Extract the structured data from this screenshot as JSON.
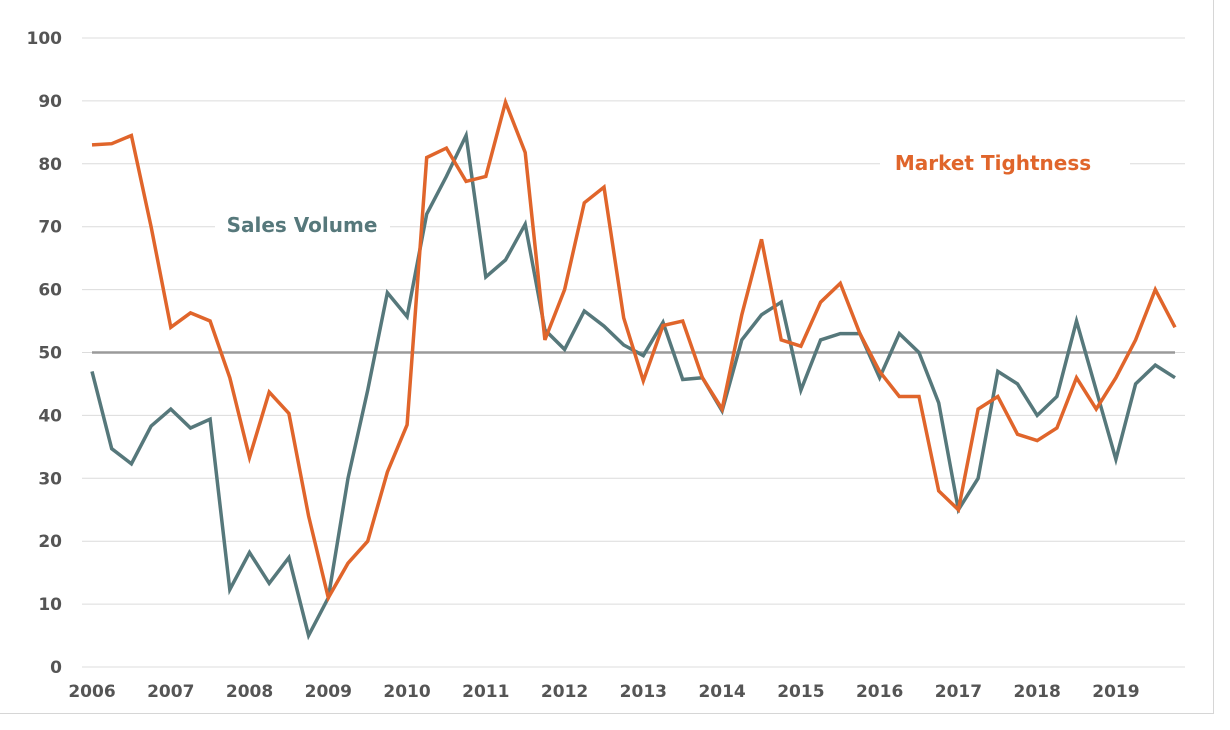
{
  "chart_data": {
    "type": "line",
    "title": "",
    "xlabel": "",
    "ylabel": "",
    "ylim": [
      0,
      100
    ],
    "yticks": [
      "0",
      "10",
      "20",
      "30",
      "40",
      "50",
      "60",
      "70",
      "80",
      "90",
      "100"
    ],
    "xticks": [
      "2006",
      "2007",
      "2008",
      "2009",
      "2010",
      "2011",
      "2012",
      "2013",
      "2014",
      "2015",
      "2016",
      "2017",
      "2018",
      "2019"
    ],
    "x_frequency": "quarterly, 2006 Q1 to 2019 Q4",
    "grid": true,
    "reference_line": 50,
    "series": [
      {
        "name": "Sales Volume",
        "color": "#56787b",
        "values": [
          47,
          34.7,
          32.3,
          38.3,
          41,
          38,
          39.4,
          12.3,
          18.2,
          13.3,
          17.4,
          5,
          11,
          30,
          44,
          59.5,
          55.7,
          72,
          78,
          84.5,
          62,
          64.7,
          70.4,
          53.6,
          50.5,
          56.6,
          54.2,
          51.2,
          49.5,
          54.8,
          45.7,
          46,
          40.7,
          52,
          56,
          58,
          44,
          52,
          53,
          53,
          46,
          53,
          50,
          42,
          25,
          30,
          47,
          45,
          40,
          43,
          55,
          44,
          33,
          45,
          48,
          46
        ]
      },
      {
        "name": "Market Tightness",
        "color": "#e0652b",
        "values": [
          83,
          83.2,
          84.5,
          70,
          54,
          56.3,
          55,
          46,
          33.3,
          43.7,
          40.3,
          24,
          11,
          16.5,
          20,
          31,
          38.5,
          81,
          82.5,
          77.2,
          78,
          89.8,
          81.8,
          52,
          60,
          73.8,
          76.3,
          55.5,
          45.5,
          54.3,
          55,
          46,
          41,
          56,
          68,
          52,
          51,
          58,
          61,
          53,
          47,
          43,
          43,
          28,
          25,
          41,
          43,
          37,
          36,
          38,
          46,
          41,
          46,
          52,
          60,
          54
        ]
      }
    ],
    "legend": "inline labels"
  }
}
